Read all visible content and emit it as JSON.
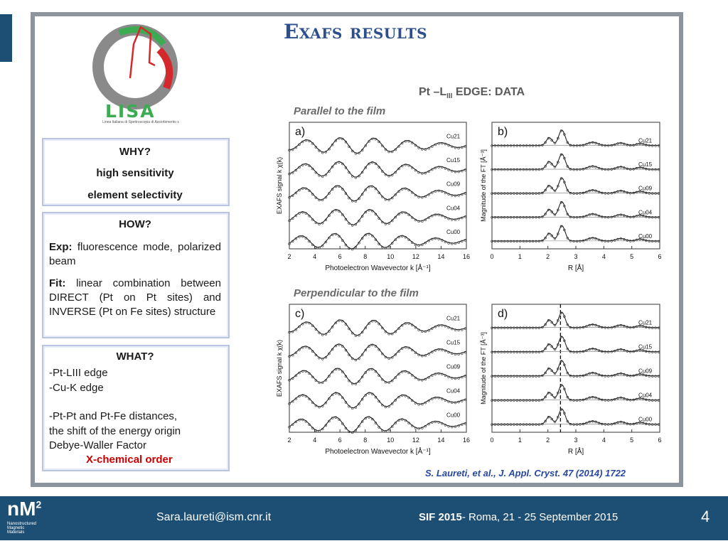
{
  "slide": {
    "title": "Exafs results",
    "logo": {
      "name": "LISA",
      "subtitle": "Linea Italiana di Spettroscopia di Assorbimento x"
    }
  },
  "left": {
    "why": {
      "heading": "WHY?",
      "lines": [
        "high sensitivity",
        "element selectivity"
      ]
    },
    "how": {
      "heading": "HOW?",
      "exp_label": "Exp:",
      "exp_text": "fluorescence mode, polarized beam",
      "fit_label": "Fit:",
      "fit_text": "linear combination between DIRECT (Pt on Pt sites) and INVERSE (Pt on Fe sites) structure"
    },
    "what": {
      "heading": "WHAT?",
      "lines": [
        "-Pt-LIII edge",
        "-Cu-K edge",
        "",
        "-Pt-Pt and Pt-Fe distances,",
        "the shift of the energy origin",
        "Debye-Waller Factor"
      ],
      "highlight": "X-chemical order"
    }
  },
  "right": {
    "edge_main": "Pt –L",
    "edge_sub": "III",
    "edge_rest": " EDGE: DATA",
    "parallel_label": "Parallel to the film",
    "perpendicular_label": "Perpendicular to the film",
    "citation": "S. Laureti, et al., J. Appl. Cryst. 47 (2014) 1722"
  },
  "chart_data": [
    {
      "type": "line",
      "panel": "a)",
      "xlabel": "Photoelectron Wavevector k [Å⁻¹]",
      "ylabel": "EXAFS signal k χ(k)",
      "xticks": [
        "2",
        "4",
        "6",
        "8",
        "10",
        "12",
        "14",
        "16"
      ],
      "xlim": [
        2,
        16
      ],
      "series": [
        {
          "name": "Cu21"
        },
        {
          "name": "Cu15"
        },
        {
          "name": "Cu09"
        },
        {
          "name": "Cu04"
        },
        {
          "name": "Cu00"
        }
      ]
    },
    {
      "type": "line",
      "panel": "b)",
      "xlabel": "R [Å]",
      "ylabel": "Magnitude of the FT [Å⁻³]",
      "xticks": [
        "0",
        "1",
        "2",
        "3",
        "4",
        "5",
        "6"
      ],
      "xlim": [
        0,
        6
      ],
      "series": [
        {
          "name": "Cu21"
        },
        {
          "name": "Cu15"
        },
        {
          "name": "Cu09"
        },
        {
          "name": "Cu04"
        },
        {
          "name": "Cu00"
        }
      ]
    },
    {
      "type": "line",
      "panel": "c)",
      "xlabel": "Photoelectron Wavevector k [Å⁻¹]",
      "ylabel": "EXAFS signal k χ(k)",
      "xticks": [
        "2",
        "4",
        "6",
        "8",
        "10",
        "12",
        "14",
        "16"
      ],
      "xlim": [
        2,
        16
      ],
      "series": [
        {
          "name": "Cu21"
        },
        {
          "name": "Cu15"
        },
        {
          "name": "Cu09"
        },
        {
          "name": "Cu04"
        },
        {
          "name": "Cu00"
        }
      ]
    },
    {
      "type": "line",
      "panel": "d)",
      "xlabel": "R [Å]",
      "ylabel": "Magnitude of the FT [Å⁻³]",
      "xticks": [
        "0",
        "1",
        "2",
        "3",
        "4",
        "5",
        "6"
      ],
      "xlim": [
        0,
        6
      ],
      "series": [
        {
          "name": "Cu21"
        },
        {
          "name": "Cu15"
        },
        {
          "name": "Cu09"
        },
        {
          "name": "Cu04"
        },
        {
          "name": "Cu00"
        }
      ]
    }
  ],
  "footer": {
    "brand": "nM",
    "brand_sup": "2",
    "brand_sub": "Nanostructured Magnetic Materials",
    "email": "Sara.laureti@ism.cnr.it",
    "conf_bold": "SIF 2015",
    "conf_rest": "- Roma, 21 - 25 September 2015",
    "page": "4"
  },
  "colors": {
    "accent": "#1c4f73",
    "title": "#2e4f8d",
    "citation": "#2848a0",
    "highlight": "#cc0000"
  }
}
